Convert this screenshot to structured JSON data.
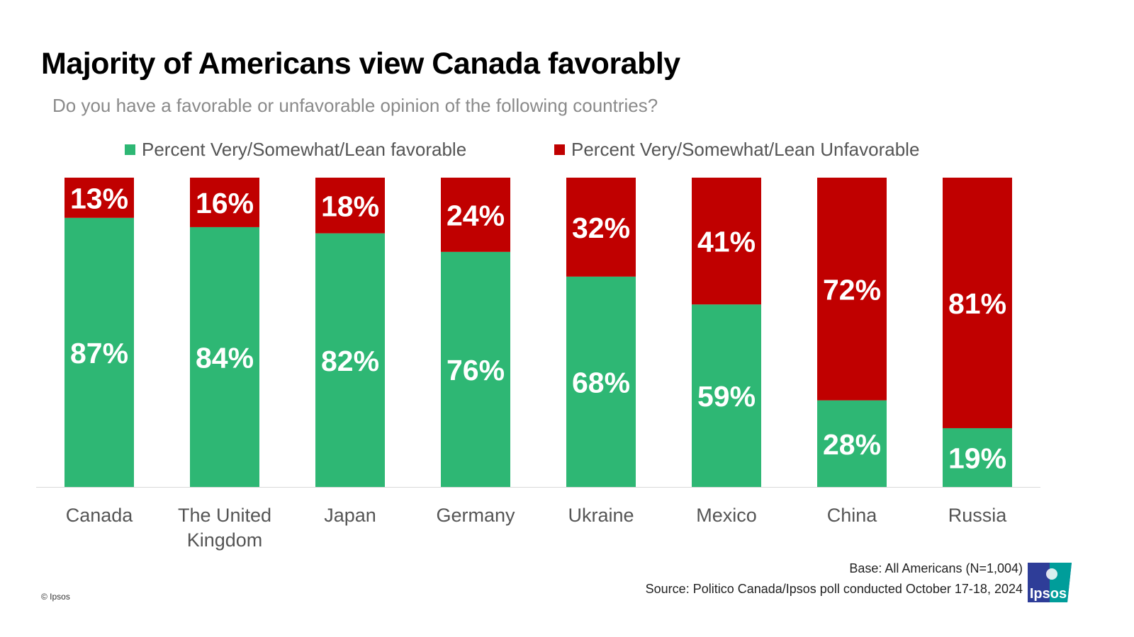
{
  "title": "Majority of Americans view Canada favorably",
  "subtitle": "Do you have a favorable or unfavorable opinion of the following countries?",
  "colors": {
    "favorable": "#2EB774",
    "unfavorable": "#C00000"
  },
  "chart_data": {
    "type": "bar",
    "stacked": true,
    "title": "Majority of Americans view Canada favorably",
    "categories": [
      "Canada",
      "The United Kingdom",
      "Japan",
      "Germany",
      "Ukraine",
      "Mexico",
      "China",
      "Russia"
    ],
    "series": [
      {
        "name": "Percent Very/Somewhat/Lean favorable",
        "color": "#2EB774",
        "values": [
          87,
          84,
          82,
          76,
          68,
          59,
          28,
          19
        ]
      },
      {
        "name": "Percent Very/Somewhat/Lean Unfavorable",
        "color": "#C00000",
        "values": [
          13,
          16,
          18,
          24,
          32,
          41,
          72,
          81
        ]
      }
    ],
    "ylim": [
      0,
      100
    ],
    "grid": false,
    "legend": "top",
    "value_suffix": "%"
  },
  "footer": {
    "base": "Base: All Americans (N=1,004)",
    "source": "Source: Politico Canada/Ipsos poll conducted October 17-18, 2024",
    "copyright": "© Ipsos",
    "logo_text": "Ipsos"
  }
}
